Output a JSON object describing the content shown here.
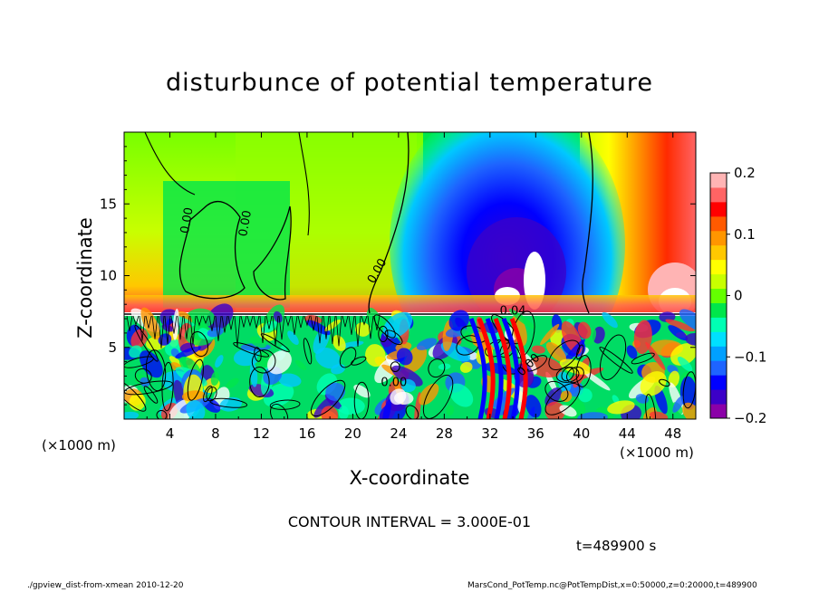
{
  "chart_data": {
    "type": "heatmap",
    "title": "disturbunce of potential temperature",
    "xlabel": "X-coordinate",
    "ylabel": "Z-coordinate",
    "x_unit": "(×1000 m)",
    "xlim": [
      0,
      50
    ],
    "ylim": [
      0,
      20
    ],
    "x_ticks": [
      "4",
      "8",
      "12",
      "16",
      "20",
      "24",
      "28",
      "32",
      "36",
      "40",
      "44",
      "48"
    ],
    "y_ticks": [
      "5",
      "10",
      "15"
    ],
    "colorbar": {
      "range": [
        -0.2,
        0.2
      ],
      "tick_labels": [
        "0.2",
        "0.1",
        "0",
        "−0.1",
        "−0.2"
      ],
      "colors": [
        "#8b00a8",
        "#3c00c8",
        "#0000ff",
        "#1e64ff",
        "#00a0ff",
        "#00e0ff",
        "#00ffb4",
        "#00e64b",
        "#64ff00",
        "#c8ff00",
        "#ffff00",
        "#ffc800",
        "#ff9600",
        "#ff5a00",
        "#ff0000",
        "#ff6464",
        "#ffb4b4"
      ]
    },
    "contour_labels": [
      "0.00",
      "0.00",
      "0.00",
      "0.00",
      "0.04",
      "0.00"
    ],
    "contour_interval": "CONTOUR INTERVAL = 3.000E-01",
    "time": "t=489900 s"
  },
  "footer": {
    "left": "./gpview_dist-from-xmean  2010-12-20",
    "right": "MarsCond_PotTemp.nc@PotTempDist,x=0:50000,z=0:20000,t=489900"
  }
}
